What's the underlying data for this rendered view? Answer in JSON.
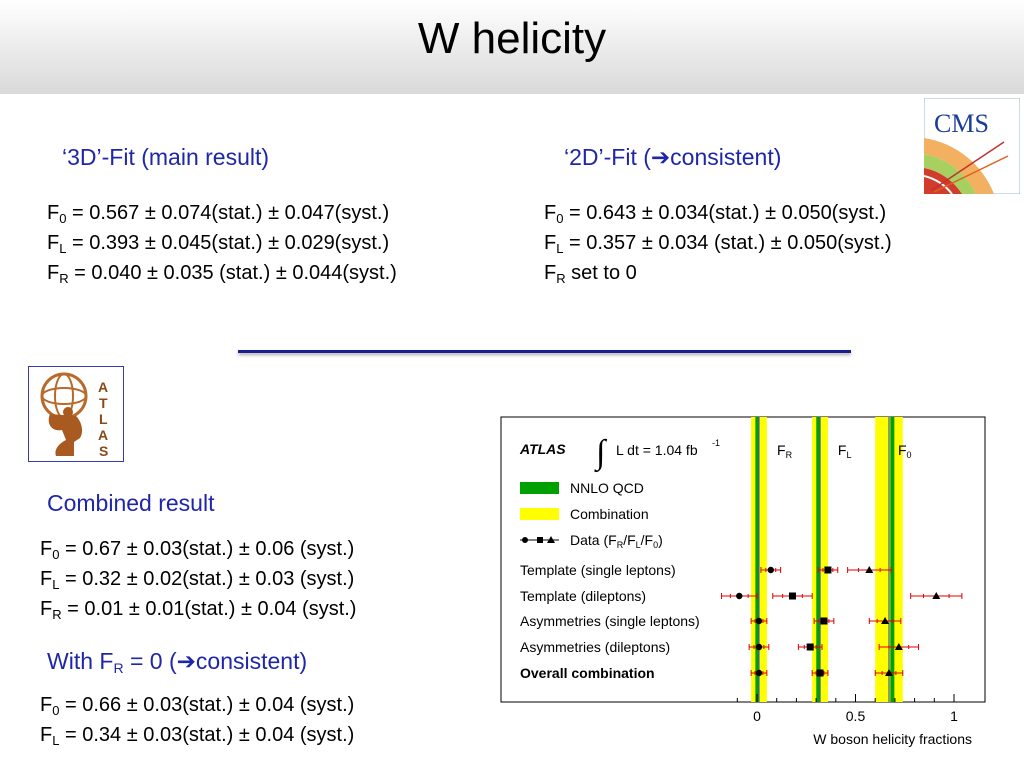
{
  "title": "W helicity",
  "fit3d": {
    "heading": "‘3D’-Fit (main result)",
    "lines": [
      {
        "sym": "F",
        "sub": "0",
        "text": " = 0.567 ± 0.074(stat.) ± 0.047(syst.)"
      },
      {
        "sym": "F",
        "sub": "L",
        "text": " = 0.393 ± 0.045(stat.) ± 0.029(syst.)"
      },
      {
        "sym": "F",
        "sub": "R",
        "text": " = 0.040 ± 0.035 (stat.) ± 0.044(syst.)"
      }
    ]
  },
  "fit2d": {
    "heading_pre": "‘2D’-Fit (",
    "arrow": "➔",
    "heading_post": "consistent)",
    "lines": [
      {
        "sym": "F",
        "sub": "0",
        "text": " = 0.643 ± 0.034(stat.) ± 0.050(syst.)"
      },
      {
        "sym": "F",
        "sub": "L",
        "text": " = 0.357 ± 0.034 (stat.) ± 0.050(syst.)"
      },
      {
        "sym": "F",
        "sub": "R",
        "text": "  set to 0"
      }
    ]
  },
  "cms_logo": {
    "text": "CMS",
    "icon": "cms-logo"
  },
  "atlas_logo": {
    "letters": [
      "A",
      "T",
      "L",
      "A",
      "S"
    ],
    "icon": "atlas-logo"
  },
  "combined": {
    "heading": "Combined result",
    "lines": [
      {
        "sym": "F",
        "sub": "0",
        "text": " = 0.67 ± 0.03(stat.)  ± 0.06 (syst.)"
      },
      {
        "sym": "F",
        "sub": "L",
        "text": " = 0.32 ± 0.02(stat.)  ± 0.03 (syst.)"
      },
      {
        "sym": "F",
        "sub": "R",
        "text": " = 0.01 ± 0.01(stat.)  ± 0.04 (syst.)"
      }
    ]
  },
  "with_fr0": {
    "heading_pre": "With F",
    "heading_sub": "R",
    "heading_mid": " = 0 (",
    "arrow": "➔",
    "heading_post": "consistent)",
    "lines": [
      {
        "sym": "F",
        "sub": "0",
        "text": " = 0.66 ± 0.03(stat.)  ± 0.04 (syst.)"
      },
      {
        "sym": "F",
        "sub": "L",
        "text": " = 0.34 ± 0.03(stat.)  ± 0.04 (syst.)"
      }
    ]
  },
  "chart_data": {
    "type": "scatter",
    "experiment": "ATLAS",
    "lumi": {
      "integral": "∫",
      "text": "L dt = 1.04 fb",
      "sup": "-1"
    },
    "xlabel": "W boson helicity fractions",
    "xlim": [
      -0.14,
      1.09
    ],
    "xticks": [
      0,
      0.5,
      1
    ],
    "xtick_labels": [
      "0",
      "0.5",
      "1"
    ],
    "legend": {
      "nnlo": "NNLO QCD",
      "combination": "Combination",
      "data_pre": "Data (F",
      "data_r": "R",
      "data_mid1": "/F",
      "data_l": "L",
      "data_mid2": "/F",
      "data_0": "0",
      "data_post": ")"
    },
    "band_labels": [
      {
        "sym": "F",
        "sub": "R",
        "x": 0.14
      },
      {
        "sym": "F",
        "sub": "L",
        "x": 0.445
      },
      {
        "sym": "F",
        "sub": "0",
        "x": 0.75
      }
    ],
    "colors": {
      "nnlo": "#00a000",
      "combination": "#ffff00",
      "line": "#3f5fa0",
      "error": "#e00000",
      "marker": "#000000"
    },
    "nnlo": [
      0.0017,
      0.311,
      0.687
    ],
    "combination": [
      {
        "param": "F_R",
        "value": 0.01,
        "low": -0.03,
        "high": 0.05
      },
      {
        "param": "F_L",
        "value": 0.32,
        "low": 0.28,
        "high": 0.36
      },
      {
        "param": "F_0",
        "value": 0.67,
        "low": 0.6,
        "high": 0.74
      }
    ],
    "rows": [
      {
        "label": "Template (single leptons)",
        "bold": false,
        "F_R": {
          "value": 0.07,
          "err": 0.05
        },
        "F_L": {
          "value": 0.36,
          "err": 0.05
        },
        "F_0": {
          "value": 0.57,
          "err": 0.11
        }
      },
      {
        "label": "Template (dileptons)",
        "bold": false,
        "F_R": {
          "value": -0.09,
          "err": 0.09
        },
        "F_L": {
          "value": 0.18,
          "err": 0.1
        },
        "F_0": {
          "value": 0.91,
          "err": 0.13
        }
      },
      {
        "label": "Asymmetries (single leptons)",
        "bold": false,
        "F_R": {
          "value": 0.01,
          "err": 0.04
        },
        "F_L": {
          "value": 0.34,
          "err": 0.05
        },
        "F_0": {
          "value": 0.65,
          "err": 0.08
        }
      },
      {
        "label": "Asymmetries (dileptons)",
        "bold": false,
        "F_R": {
          "value": 0.01,
          "err": 0.05
        },
        "F_L": {
          "value": 0.27,
          "err": 0.06
        },
        "F_0": {
          "value": 0.72,
          "err": 0.1
        }
      },
      {
        "label": "Overall combination",
        "bold": true,
        "F_R": {
          "value": 0.01,
          "err": 0.04
        },
        "F_L": {
          "value": 0.32,
          "err": 0.04
        },
        "F_0": {
          "value": 0.67,
          "err": 0.07
        }
      }
    ]
  }
}
